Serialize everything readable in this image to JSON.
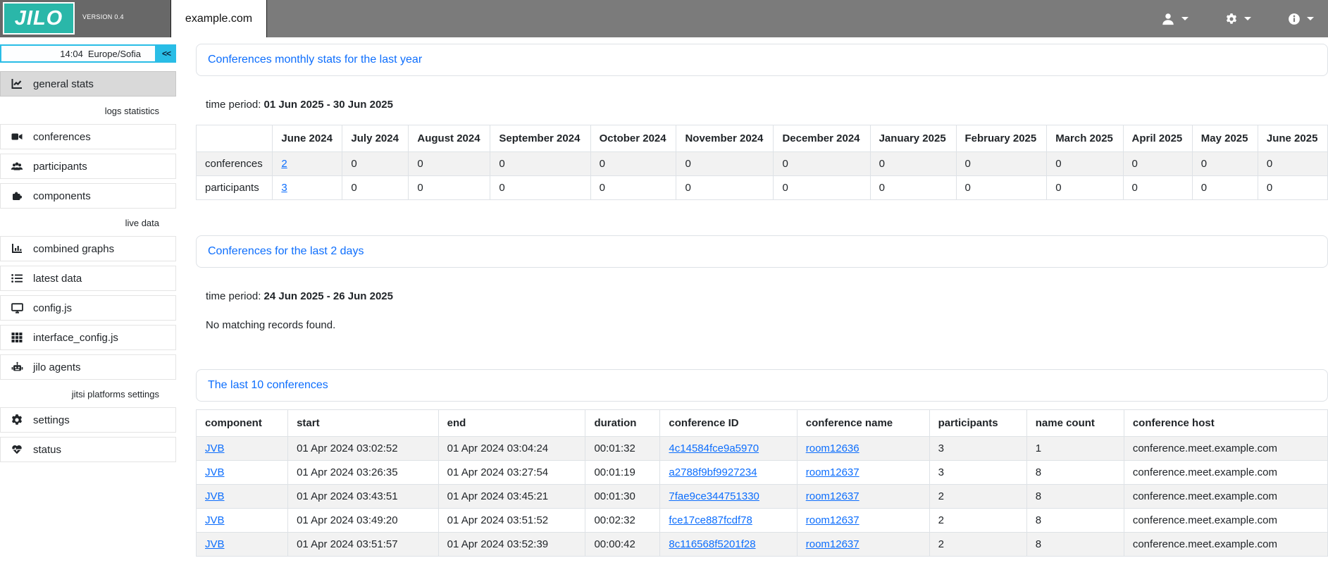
{
  "colors": {
    "brand_teal": "#2ab7a9",
    "accent_cyan": "#29bde6",
    "link_blue": "#0d6efd",
    "topbar_gray": "#7b7b7b"
  },
  "header": {
    "logo_text": "JILO",
    "version": "VERSION 0.4",
    "tab_label": "example.com",
    "menus": [
      {
        "icon": "user-icon"
      },
      {
        "icon": "gear-icon"
      },
      {
        "icon": "info-icon"
      }
    ]
  },
  "sidebar": {
    "clock": {
      "time": "14:04",
      "timezone": "Europe/Sofia",
      "collapse_label": "<<"
    },
    "sections": [
      {
        "label": "",
        "items": [
          {
            "icon": "chart-line-icon",
            "label": "general stats",
            "active": true
          }
        ]
      },
      {
        "label": "logs statistics",
        "items": [
          {
            "icon": "video-icon",
            "label": "conferences"
          },
          {
            "icon": "users-icon",
            "label": "participants"
          },
          {
            "icon": "puzzle-icon",
            "label": "components"
          }
        ]
      },
      {
        "label": "live data",
        "items": [
          {
            "icon": "chart-column-icon",
            "label": "combined graphs"
          },
          {
            "icon": "list-icon",
            "label": "latest data"
          },
          {
            "icon": "desktop-icon",
            "label": "config.js"
          },
          {
            "icon": "grid-icon",
            "label": "interface_config.js"
          },
          {
            "icon": "robot-icon",
            "label": "jilo agents"
          }
        ]
      },
      {
        "label": "jitsi platforms settings",
        "items": [
          {
            "icon": "gear-icon",
            "label": "settings"
          },
          {
            "icon": "heart-pulse-icon",
            "label": "status"
          }
        ]
      }
    ]
  },
  "main": {
    "monthly": {
      "title": "Conferences monthly stats for the last year",
      "time_period_label": "time period:",
      "time_period": "01 Jun 2025 - 30 Jun 2025",
      "table": {
        "columns": [
          "",
          "June 2024",
          "July 2024",
          "August 2024",
          "September 2024",
          "October 2024",
          "November 2024",
          "December 2024",
          "January 2025",
          "February 2025",
          "March 2025",
          "April 2025",
          "May 2025",
          "June 2025"
        ],
        "rows": [
          {
            "label": "conferences",
            "values": [
              "2",
              "0",
              "0",
              "0",
              "0",
              "0",
              "0",
              "0",
              "0",
              "0",
              "0",
              "0",
              "0"
            ],
            "link_value_indices": [
              0
            ]
          },
          {
            "label": "participants",
            "values": [
              "3",
              "0",
              "0",
              "0",
              "0",
              "0",
              "0",
              "0",
              "0",
              "0",
              "0",
              "0",
              "0"
            ],
            "link_value_indices": [
              0
            ]
          }
        ]
      }
    },
    "last2days": {
      "title": "Conferences for the last 2 days",
      "time_period_label": "time period:",
      "time_period": "24 Jun 2025 - 26 Jun 2025",
      "empty_message": "No matching records found."
    },
    "last10": {
      "title": "The last 10 conferences",
      "table": {
        "columns": [
          "component",
          "start",
          "end",
          "duration",
          "conference ID",
          "conference name",
          "participants",
          "name count",
          "conference host"
        ],
        "link_column_indices": [
          0,
          4,
          5
        ],
        "rows": [
          [
            "JVB",
            "01 Apr 2024 03:02:52",
            "01 Apr 2024 03:04:24",
            "00:01:32",
            "4c14584fce9a5970",
            "room12636",
            "3",
            "1",
            "conference.meet.example.com"
          ],
          [
            "JVB",
            "01 Apr 2024 03:26:35",
            "01 Apr 2024 03:27:54",
            "00:01:19",
            "a2788f9bf9927234",
            "room12637",
            "3",
            "8",
            "conference.meet.example.com"
          ],
          [
            "JVB",
            "01 Apr 2024 03:43:51",
            "01 Apr 2024 03:45:21",
            "00:01:30",
            "7fae9ce344751330",
            "room12637",
            "2",
            "8",
            "conference.meet.example.com"
          ],
          [
            "JVB",
            "01 Apr 2024 03:49:20",
            "01 Apr 2024 03:51:52",
            "00:02:32",
            "fce17ce887fcdf78",
            "room12637",
            "2",
            "8",
            "conference.meet.example.com"
          ],
          [
            "JVB",
            "01 Apr 2024 03:51:57",
            "01 Apr 2024 03:52:39",
            "00:00:42",
            "8c116568f5201f28",
            "room12637",
            "2",
            "8",
            "conference.meet.example.com"
          ]
        ]
      }
    }
  }
}
